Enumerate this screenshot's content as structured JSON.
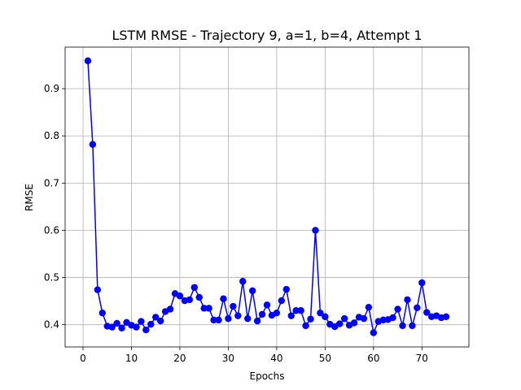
{
  "chart_data": {
    "type": "line",
    "title": "LSTM RMSE - Trajectory 9, a=1, b=4, Attempt 1",
    "xlabel": "Epochs",
    "ylabel": "RMSE",
    "xlim": [
      -3.7,
      79.7
    ],
    "ylim": [
      0.353,
      0.988
    ],
    "x_ticks": [
      0,
      10,
      20,
      30,
      40,
      50,
      60,
      70
    ],
    "y_ticks": [
      0.4,
      0.5,
      0.6,
      0.7,
      0.8,
      0.9
    ],
    "grid": true,
    "series": [
      {
        "color": "#0000ff",
        "marker": "circle",
        "x": [
          1,
          2,
          3,
          4,
          5,
          6,
          7,
          8,
          9,
          10,
          11,
          12,
          13,
          14,
          15,
          16,
          17,
          18,
          19,
          20,
          21,
          22,
          23,
          24,
          25,
          26,
          27,
          28,
          29,
          30,
          31,
          32,
          33,
          34,
          35,
          36,
          37,
          38,
          39,
          40,
          41,
          42,
          43,
          44,
          45,
          46,
          47,
          48,
          49,
          50,
          51,
          52,
          53,
          54,
          55,
          56,
          57,
          58,
          59,
          60,
          61,
          62,
          63,
          64,
          65,
          66,
          67,
          68,
          69,
          70,
          71,
          72,
          73,
          74,
          75
        ],
        "values": [
          0.959,
          0.782,
          0.474,
          0.425,
          0.397,
          0.395,
          0.403,
          0.393,
          0.405,
          0.399,
          0.395,
          0.407,
          0.389,
          0.401,
          0.416,
          0.408,
          0.428,
          0.433,
          0.466,
          0.461,
          0.451,
          0.453,
          0.479,
          0.458,
          0.435,
          0.435,
          0.41,
          0.41,
          0.455,
          0.413,
          0.439,
          0.419,
          0.492,
          0.413,
          0.472,
          0.408,
          0.422,
          0.442,
          0.42,
          0.425,
          0.451,
          0.475,
          0.419,
          0.43,
          0.43,
          0.398,
          0.412,
          0.6,
          0.425,
          0.417,
          0.401,
          0.396,
          0.402,
          0.413,
          0.399,
          0.404,
          0.416,
          0.413,
          0.437,
          0.383,
          0.407,
          0.41,
          0.411,
          0.415,
          0.433,
          0.398,
          0.453,
          0.398,
          0.436,
          0.489,
          0.426,
          0.417,
          0.419,
          0.415,
          0.417
        ]
      }
    ]
  }
}
